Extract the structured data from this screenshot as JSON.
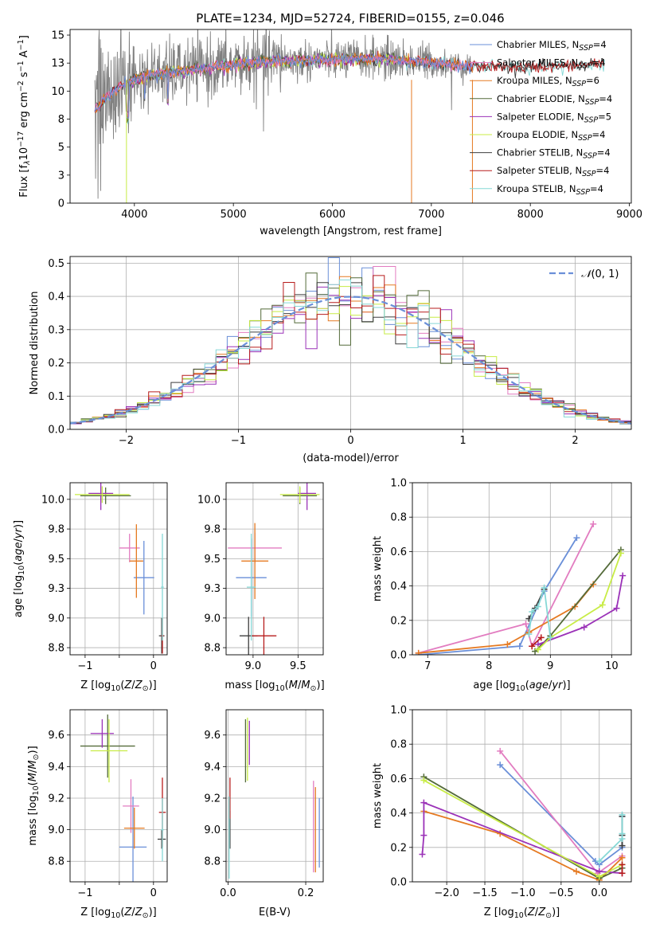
{
  "title": "PLATE=1234, MJD=52724, FIBERID=0155, z=0.046",
  "colors": {
    "Chabrier MILES": "#6a8fd8",
    "Salpeter MILES": "#e27cc0",
    "Kroupa MILES": "#e57a22",
    "Chabrier ELODIE": "#546b3a",
    "Salpeter ELODIE": "#9b32b8",
    "Kroupa ELODIE": "#c8ec46",
    "Chabrier STELIB": "#3e3e3e",
    "Salpeter STELIB": "#b71c1c",
    "Kroupa STELIB": "#86d8d6",
    "data": "#808080",
    "gaussian": "#6a8fd8"
  },
  "chart_data": [
    {
      "id": "spectrum",
      "type": "line",
      "title": "PLATE=1234, MJD=52724, FIBERID=0155, z=0.046",
      "xlabel": "wavelength [Angstrom, rest frame]",
      "ylabel": "Flux [f_λ 10^-17 erg cm^-2 s^-1 A^-1]",
      "xlim": [
        3350,
        9020
      ],
      "ylim": [
        0,
        15.5
      ],
      "xticks": [
        4000,
        5000,
        6000,
        7000,
        8000,
        9000
      ],
      "yticks": [
        0.0,
        2.5,
        5.0,
        7.5,
        10.0,
        12.5,
        15.0
      ],
      "legend": [
        "Chabrier MILES, N_SSP=4",
        "Salpeter MILES, N_SSP=4",
        "Kroupa MILES, N_SSP=6",
        "Chabrier ELODIE, N_SSP=4",
        "Salpeter ELODIE, N_SSP=5",
        "Kroupa ELODIE, N_SSP=4",
        "Chabrier STELIB, N_SSP=4",
        "Salpeter STELIB, N_SSP=4",
        "Kroupa STELIB, N_SSP=4"
      ],
      "legend_loc": "upper right",
      "continuum": [
        [
          3600,
          8.2
        ],
        [
          3700,
          9.3
        ],
        [
          3850,
          10.4
        ],
        [
          4000,
          11.0
        ],
        [
          4200,
          11.5
        ],
        [
          4500,
          11.8
        ],
        [
          5000,
          12.4
        ],
        [
          5500,
          12.7
        ],
        [
          6000,
          12.8
        ],
        [
          6500,
          12.9
        ],
        [
          7000,
          12.5
        ],
        [
          7500,
          12.2
        ],
        [
          8000,
          12.1
        ],
        [
          8500,
          12.3
        ],
        [
          8700,
          12.4
        ]
      ],
      "data_range": [
        3600,
        7420
      ],
      "model_ranges": {
        "MILES": [
          3600,
          7420
        ],
        "ELODIE": [
          3900,
          6800
        ],
        "STELIB": [
          3600,
          8750
        ]
      },
      "grid": false
    },
    {
      "id": "residuals",
      "type": "histogram",
      "xlabel": "(data-model)/error",
      "ylabel": "Normed distribution",
      "xlim": [
        -2.5,
        2.5
      ],
      "ylim": [
        0,
        0.52
      ],
      "xticks": [
        -2,
        -1,
        0,
        1,
        2
      ],
      "yticks": [
        0.0,
        0.1,
        0.2,
        0.3,
        0.4,
        0.5
      ],
      "legend": [
        "N(0,1)"
      ],
      "legend_loc": "upper right",
      "bin_width": 0.1,
      "grid": true
    },
    {
      "id": "age_vs_Z",
      "type": "errorbar",
      "xlabel": "Z [log10(Z/Z_sun)]",
      "ylabel": "age  [log10(age/yr)]",
      "xlim": [
        -1.22,
        0.2
      ],
      "ylim": [
        8.69,
        10.14
      ],
      "xticks": [
        -1,
        -0.5,
        0
      ],
      "xticklabels": [
        "−1",
        "",
        "0"
      ],
      "yticks": [
        8.75,
        9.0,
        9.25,
        9.5,
        9.75,
        10.0
      ],
      "points": [
        {
          "model": "Chabrier MILES",
          "x": -0.14,
          "xerr": 0.15,
          "y": 9.34,
          "yerr": 0.31
        },
        {
          "model": "Salpeter MILES",
          "x": -0.35,
          "xerr": 0.15,
          "y": 9.59,
          "yerr": 0.12
        },
        {
          "model": "Kroupa MILES",
          "x": -0.25,
          "xerr": 0.1,
          "y": 9.48,
          "yerr": 0.31
        },
        {
          "model": "Chabrier ELODIE",
          "x": -0.7,
          "xerr": 0.37,
          "y": 10.03,
          "yerr": 0.07
        },
        {
          "model": "Salpeter ELODIE",
          "x": -0.77,
          "xerr": 0.18,
          "y": 10.05,
          "yerr": 0.14
        },
        {
          "model": "Kroupa ELODIE",
          "x": -0.75,
          "xerr": 0.4,
          "y": 10.04,
          "yerr": 0.07
        },
        {
          "model": "Chabrier STELIB",
          "x": 0.12,
          "xerr": 0.04,
          "y": 8.85,
          "yerr": 0.15
        },
        {
          "model": "Salpeter STELIB",
          "x": 0.13,
          "xerr": 0.02,
          "y": 8.85,
          "yerr": 0.15
        },
        {
          "model": "Kroupa STELIB",
          "x": 0.13,
          "xerr": 0.02,
          "y": 9.26,
          "yerr": 0.45
        }
      ],
      "grid": true
    },
    {
      "id": "age_vs_mass",
      "type": "errorbar",
      "xlabel": "mass [log10(M/M_sun)]",
      "ylabel": "",
      "xlim": [
        8.7,
        9.78
      ],
      "ylim": [
        8.69,
        10.14
      ],
      "xticks": [
        9.0,
        9.5
      ],
      "yticks": [
        8.75,
        9.0,
        9.25,
        9.5,
        9.75,
        10.0
      ],
      "points": [
        {
          "model": "Chabrier MILES",
          "x": 8.98,
          "xerr": 0.17,
          "y": 9.34,
          "yerr": 0.33
        },
        {
          "model": "Salpeter MILES",
          "x": 9.02,
          "xerr": 0.3,
          "y": 9.59,
          "yerr": 0.13
        },
        {
          "model": "Kroupa MILES",
          "x": 9.02,
          "xerr": 0.15,
          "y": 9.48,
          "yerr": 0.32
        },
        {
          "model": "Chabrier ELODIE",
          "x": 9.52,
          "xerr": 0.19,
          "y": 10.03,
          "yerr": 0.07
        },
        {
          "model": "Salpeter ELODIE",
          "x": 9.6,
          "xerr": 0.1,
          "y": 10.05,
          "yerr": 0.14
        },
        {
          "model": "Kroupa ELODIE",
          "x": 9.52,
          "xerr": 0.22,
          "y": 10.04,
          "yerr": 0.07
        },
        {
          "model": "Chabrier STELIB",
          "x": 8.95,
          "xerr": 0.1,
          "y": 8.85,
          "yerr": 0.16
        },
        {
          "model": "Salpeter STELIB",
          "x": 9.12,
          "xerr": 0.14,
          "y": 8.85,
          "yerr": 0.16
        },
        {
          "model": "Kroupa STELIB",
          "x": 8.98,
          "xerr": 0.05,
          "y": 9.26,
          "yerr": 0.45
        }
      ],
      "grid": true
    },
    {
      "id": "mw_vs_age",
      "type": "line",
      "xlabel": "age  [log10(age/yr)]",
      "ylabel": "mass weight",
      "xlim": [
        6.75,
        10.32
      ],
      "ylim": [
        0,
        1.0
      ],
      "xticks": [
        7,
        8,
        9,
        10
      ],
      "yticks": [
        0.0,
        0.2,
        0.4,
        0.6,
        0.8,
        1.0
      ],
      "series": [
        {
          "name": "Chabrier MILES",
          "x": [
            6.85,
            8.5,
            8.9,
            9.43
          ],
          "y": [
            0.0,
            0.05,
            0.37,
            0.68
          ]
        },
        {
          "name": "Salpeter MILES",
          "x": [
            6.85,
            8.6,
            8.7,
            9.7
          ],
          "y": [
            0.01,
            0.18,
            0.05,
            0.76
          ]
        },
        {
          "name": "Kroupa MILES",
          "x": [
            6.85,
            8.3,
            8.65,
            9.4,
            9.7
          ],
          "y": [
            0.01,
            0.06,
            0.13,
            0.28,
            0.41
          ]
        },
        {
          "name": "Chabrier ELODIE",
          "x": [
            8.75,
            9.0,
            10.15
          ],
          "y": [
            0.02,
            0.11,
            0.61
          ]
        },
        {
          "name": "Salpeter ELODIE",
          "x": [
            8.8,
            9.55,
            10.08,
            10.18
          ],
          "y": [
            0.06,
            0.16,
            0.27,
            0.46
          ]
        },
        {
          "name": "Kroupa ELODIE",
          "x": [
            8.8,
            9.0,
            9.85,
            10.15
          ],
          "y": [
            0.03,
            0.1,
            0.29,
            0.59
          ]
        },
        {
          "name": "Chabrier STELIB",
          "x": [
            8.65,
            8.75,
            8.9
          ],
          "y": [
            0.21,
            0.27,
            0.38
          ]
        },
        {
          "name": "Salpeter STELIB",
          "x": [
            8.7,
            8.85
          ],
          "y": [
            0.05,
            0.1
          ]
        },
        {
          "name": "Kroupa STELIB",
          "x": [
            8.65,
            8.7,
            8.8,
            8.9,
            9.0
          ],
          "y": [
            0.12,
            0.25,
            0.28,
            0.39,
            0.1
          ]
        }
      ],
      "grid": true
    },
    {
      "id": "mass_vs_Z",
      "type": "errorbar",
      "xlabel": "Z [log10(Z/Z_sun)]",
      "ylabel": "mass [log10(M/M_sun)]",
      "xlim": [
        -1.22,
        0.2
      ],
      "ylim": [
        8.67,
        9.76
      ],
      "xticks": [
        -1,
        -0.5,
        0
      ],
      "xticklabels": [
        "−1",
        "",
        "0"
      ],
      "yticks": [
        8.8,
        9.0,
        9.2,
        9.4,
        9.6
      ],
      "points": [
        {
          "model": "Chabrier MILES",
          "x": -0.3,
          "xerr": 0.2,
          "y": 8.89,
          "yerr": 0.32
        },
        {
          "model": "Salpeter MILES",
          "x": -0.33,
          "xerr": 0.12,
          "y": 9.15,
          "yerr": 0.17
        },
        {
          "model": "Kroupa MILES",
          "x": -0.28,
          "xerr": 0.15,
          "y": 9.01,
          "yerr": 0.13
        },
        {
          "model": "Chabrier ELODIE",
          "x": -0.67,
          "xerr": 0.4,
          "y": 9.53,
          "yerr": 0.2
        },
        {
          "model": "Salpeter ELODIE",
          "x": -0.75,
          "xerr": 0.17,
          "y": 9.61,
          "yerr": 0.09
        },
        {
          "model": "Kroupa ELODIE",
          "x": -0.65,
          "xerr": 0.27,
          "y": 9.5,
          "yerr": 0.2
        },
        {
          "model": "Chabrier STELIB",
          "x": 0.12,
          "xerr": 0.06,
          "y": 8.94,
          "yerr": 0.06
        },
        {
          "model": "Salpeter STELIB",
          "x": 0.13,
          "xerr": 0.05,
          "y": 9.11,
          "yerr": 0.22
        },
        {
          "model": "Kroupa STELIB",
          "x": 0.13,
          "xerr": 0.02,
          "y": 9.0,
          "yerr": 0.2
        }
      ],
      "grid": true
    },
    {
      "id": "mass_vs_EBV",
      "type": "errorbar",
      "xlabel": "E(B-V)",
      "ylabel": "",
      "xlim": [
        -0.005,
        0.245
      ],
      "ylim": [
        8.67,
        9.76
      ],
      "xticks": [
        0.0,
        0.2
      ],
      "yticks": [
        8.8,
        9.0,
        9.2,
        9.4,
        9.6
      ],
      "points": [
        {
          "model": "Chabrier MILES",
          "x": 0.235,
          "y": 8.98,
          "yerr": 0.22
        },
        {
          "model": "Salpeter MILES",
          "x": 0.22,
          "y": 9.02,
          "yerr": 0.29
        },
        {
          "model": "Kroupa MILES",
          "x": 0.225,
          "y": 9.0,
          "yerr": 0.27
        },
        {
          "model": "Chabrier ELODIE",
          "x": 0.045,
          "y": 9.5,
          "yerr": 0.2
        },
        {
          "model": "Salpeter ELODIE",
          "x": 0.055,
          "y": 9.55,
          "yerr": 0.14
        },
        {
          "model": "Kroupa ELODIE",
          "x": 0.05,
          "y": 9.51,
          "yerr": 0.2
        },
        {
          "model": "Chabrier STELIB",
          "x": 0.005,
          "y": 9.0,
          "yerr": 0.12
        },
        {
          "model": "Salpeter STELIB",
          "x": 0.005,
          "y": 9.2,
          "yerr": 0.13
        },
        {
          "model": "Kroupa STELIB",
          "x": 0.003,
          "y": 8.95,
          "yerr": 0.26
        }
      ],
      "grid": true
    },
    {
      "id": "mw_vs_Z",
      "type": "line",
      "xlabel": "Z [log10(Z/Z_sun)]",
      "ylabel": "mass weight",
      "xlim": [
        -2.45,
        0.42
      ],
      "ylim": [
        0,
        1.0
      ],
      "xticks": [
        -2.0,
        -1.5,
        -1.0,
        -0.5,
        0.0
      ],
      "yticks": [
        0.0,
        0.2,
        0.4,
        0.6,
        0.8,
        1.0
      ],
      "series": [
        {
          "name": "Chabrier MILES",
          "x": [
            -1.3,
            -0.05,
            0.0,
            0.3,
            0.3
          ],
          "y": [
            0.68,
            0.12,
            0.1,
            0.2,
            0.38
          ]
        },
        {
          "name": "Salpeter MILES",
          "x": [
            -1.3,
            -0.02,
            0.3
          ],
          "y": [
            0.76,
            0.05,
            0.15
          ]
        },
        {
          "name": "Kroupa MILES",
          "x": [
            -2.3,
            -1.3,
            -0.3,
            0.0,
            0.3
          ],
          "y": [
            0.41,
            0.28,
            0.06,
            0.01,
            0.14
          ]
        },
        {
          "name": "Chabrier ELODIE",
          "x": [
            -2.3,
            0.0,
            0.3
          ],
          "y": [
            0.61,
            0.02,
            0.08
          ]
        },
        {
          "name": "Salpeter ELODIE",
          "x": [
            -2.32,
            -2.3,
            -2.3,
            0.0,
            0.3
          ],
          "y": [
            0.16,
            0.27,
            0.46,
            0.06,
            0.05
          ]
        },
        {
          "name": "Kroupa ELODIE",
          "x": [
            -2.3,
            0.0,
            0.3
          ],
          "y": [
            0.59,
            0.03,
            0.1
          ]
        },
        {
          "name": "Chabrier STELIB",
          "x": [
            0.3,
            0.3,
            0.3
          ],
          "y": [
            0.21,
            0.27,
            0.38
          ]
        },
        {
          "name": "Salpeter STELIB",
          "x": [
            0.3,
            0.3
          ],
          "y": [
            0.05,
            0.1
          ]
        },
        {
          "name": "Kroupa STELIB",
          "x": [
            0.0,
            0.3,
            0.3,
            0.3
          ],
          "y": [
            0.12,
            0.25,
            0.28,
            0.39
          ]
        }
      ],
      "grid": true
    }
  ]
}
